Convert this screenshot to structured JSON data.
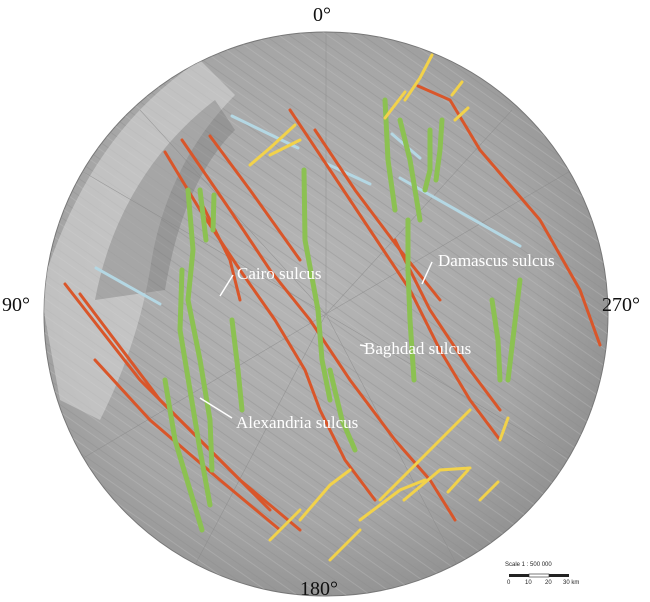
{
  "map": {
    "degree_labels": {
      "top": "0°",
      "left": "90°",
      "right": "270°",
      "bottom": "180°"
    },
    "sulci": {
      "cairo": "Cairo sulcus",
      "damascus": "Damascus sulcus",
      "baghdad": "Baghdad sulcus",
      "alexandria": "Alexandria sulcus"
    },
    "scale": {
      "title": "Scale 1 : 500 000",
      "ticks": [
        "0",
        "10",
        "20",
        "30 km"
      ]
    },
    "colors": {
      "red_fractures": "#d9562a",
      "green_fractures": "#8cc152",
      "yellow_fractures": "#f2d24a",
      "blue_fractures": "#b4d7e3",
      "surface": "#a8a8a8"
    }
  }
}
